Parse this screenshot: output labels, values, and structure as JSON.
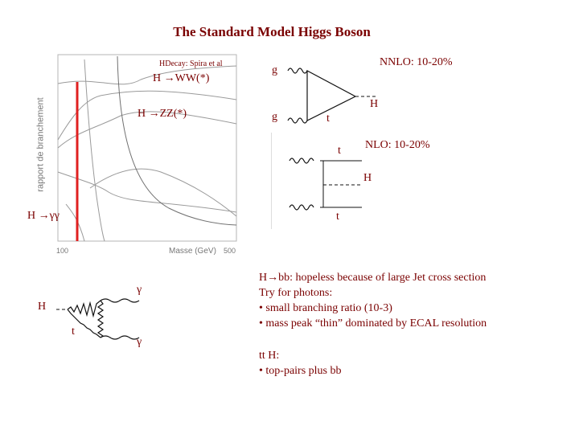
{
  "title": "The Standard Model Higgs Boson",
  "branching_plot": {
    "credit": "HDecay: Spira et al",
    "ylabel": "rapport de branchement",
    "xlabel": "Masse (GeV)",
    "xtick": "100",
    "xtick_end": "500",
    "channels": {
      "ww": "H →WW(*)",
      "zz": "H →ZZ(*)",
      "gg": "H →γγ"
    }
  },
  "diagram_nnlo": {
    "g1": "g",
    "g2": "g",
    "t": "t",
    "H": "H",
    "order": "NNLO: 10-20%"
  },
  "diagram_nlo": {
    "t1": "t",
    "t2": "t",
    "H": "H",
    "order": "NLO: 10-20%"
  },
  "diagram_gg": {
    "H": "H",
    "t": "t",
    "gamma1": "γ",
    "gamma2": "γ"
  },
  "notes": {
    "line1": "H→bb: hopeless because of large Jet cross section",
    "line2": "Try for photons:",
    "line3": "• small branching ratio (10-3)",
    "line4": "• mass peak “thin” dominated by ECAL resolution",
    "line5": "tt H:",
    "line6": "•  top-pairs plus bb"
  },
  "colors": {
    "text": "#7a0000",
    "marker": "#e02020",
    "curve": "#9a9a9a",
    "line": "#111111"
  }
}
